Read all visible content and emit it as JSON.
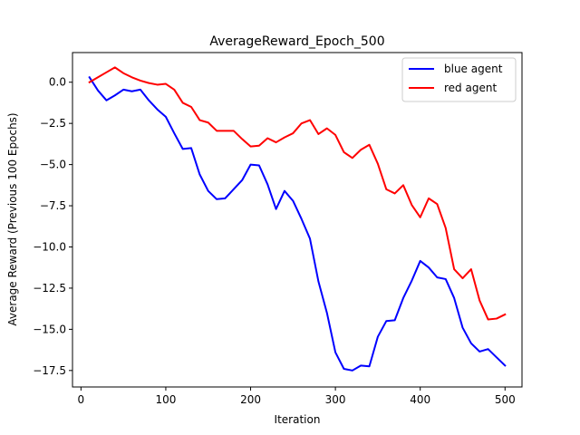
{
  "chart_data": {
    "type": "line",
    "title": "AverageReward_Epoch_500",
    "xlabel": "Iteration",
    "ylabel": "Average Reward (Previous 100 Epochs)",
    "xlim": [
      -10,
      520
    ],
    "ylim": [
      -18.5,
      1.8
    ],
    "xticks": [
      0,
      100,
      200,
      300,
      400,
      500
    ],
    "yticks": [
      0.0,
      -2.5,
      -5.0,
      -7.5,
      -10.0,
      -12.5,
      -15.0,
      -17.5
    ],
    "xtick_labels": [
      "0",
      "100",
      "200",
      "300",
      "400",
      "500"
    ],
    "ytick_labels": [
      "0.0",
      "−2.5",
      "−5.0",
      "−7.5",
      "−10.0",
      "−12.5",
      "−15.0",
      "−17.5"
    ],
    "grid": false,
    "legend_position": "top-right",
    "x": [
      10,
      20,
      30,
      40,
      50,
      60,
      70,
      80,
      90,
      100,
      110,
      120,
      130,
      140,
      150,
      160,
      170,
      180,
      190,
      200,
      210,
      220,
      230,
      240,
      250,
      260,
      270,
      280,
      290,
      300,
      310,
      320,
      330,
      340,
      350,
      360,
      370,
      380,
      390,
      400,
      410,
      420,
      430,
      440,
      450,
      460,
      470,
      480,
      490,
      500
    ],
    "series": [
      {
        "name": "blue agent",
        "color": "#0000ff",
        "values": [
          0.3,
          -0.5,
          -1.1,
          -0.8,
          -0.45,
          -0.55,
          -0.45,
          -1.1,
          -1.65,
          -2.1,
          -3.1,
          -4.05,
          -4.0,
          -5.6,
          -6.6,
          -7.1,
          -7.05,
          -6.5,
          -5.95,
          -5.0,
          -5.05,
          -6.2,
          -7.7,
          -6.6,
          -7.2,
          -8.3,
          -9.5,
          -12.1,
          -14.0,
          -16.4,
          -17.4,
          -17.5,
          -17.2,
          -17.25,
          -15.45,
          -14.5,
          -14.45,
          -13.1,
          -12.05,
          -10.85,
          -11.25,
          -11.85,
          -11.95,
          -13.1,
          -14.9,
          -15.85,
          -16.35,
          -16.2,
          -16.7,
          -17.2
        ]
      },
      {
        "name": "red agent",
        "color": "#ff0000",
        "values": [
          0.0,
          0.3,
          0.6,
          0.9,
          0.55,
          0.3,
          0.1,
          -0.05,
          -0.15,
          -0.1,
          -0.45,
          -1.25,
          -1.5,
          -2.3,
          -2.45,
          -2.95,
          -2.95,
          -2.95,
          -3.45,
          -3.9,
          -3.85,
          -3.4,
          -3.65,
          -3.35,
          -3.1,
          -2.5,
          -2.3,
          -3.15,
          -2.8,
          -3.2,
          -4.25,
          -4.6,
          -4.1,
          -3.8,
          -4.95,
          -6.5,
          -6.75,
          -6.25,
          -7.45,
          -8.2,
          -7.05,
          -7.4,
          -8.85,
          -11.35,
          -11.9,
          -11.35,
          -13.25,
          -14.4,
          -14.35,
          -14.1
        ]
      }
    ]
  }
}
